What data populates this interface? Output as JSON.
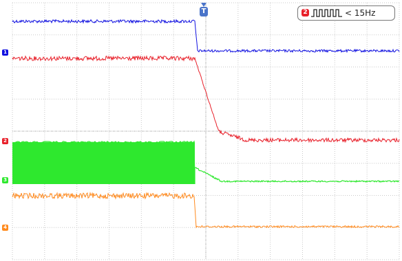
{
  "trigger": {
    "label": "T",
    "color": "#4a74c9"
  },
  "frequency_panel": {
    "channel": "2",
    "channel_color": "#e8202a",
    "icon": "square-wave-icon",
    "text": "< 15Hz"
  },
  "channels": [
    {
      "id": "1",
      "color": "#1010e0",
      "level": 1.0
    },
    {
      "id": "2",
      "color": "#e8202a",
      "level": 0.0
    },
    {
      "id": "3",
      "color": "#2ee82e",
      "level": 0.0
    },
    {
      "id": "4",
      "color": "#ff8a1e",
      "level": 0.0
    }
  ],
  "grid": {
    "divisions_x": 12,
    "divisions_y": 8,
    "color": "#c8c8c8"
  }
}
